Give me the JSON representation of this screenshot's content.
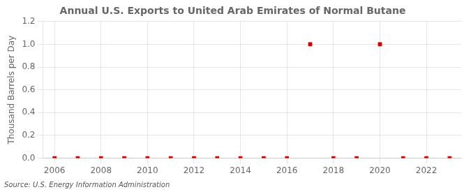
{
  "chart_data": {
    "type": "scatter",
    "title": "Annual U.S. Exports to United Arab Emirates of Normal Butane",
    "ylabel": "Thousand Barrels per Day",
    "source": "Source: U.S. Energy Information Administration",
    "x": [
      2006,
      2007,
      2008,
      2009,
      2010,
      2011,
      2012,
      2013,
      2014,
      2015,
      2016,
      2017,
      2018,
      2019,
      2020,
      2021,
      2022,
      2023
    ],
    "values": [
      0,
      0,
      0,
      0,
      0,
      0,
      0,
      0,
      0,
      0,
      0,
      1.0,
      0,
      0,
      1.0,
      0,
      0,
      0
    ],
    "color": "#cc0000",
    "marker": "square",
    "xlim": [
      2005.5,
      2023.5
    ],
    "xticks": [
      2006,
      2008,
      2010,
      2012,
      2014,
      2016,
      2018,
      2020,
      2022
    ],
    "ylim": [
      0.0,
      1.2
    ],
    "yticks": [
      {
        "value": 0,
        "label": "0.0"
      },
      0.2,
      0.4,
      0.6,
      0.8,
      {
        "value": 1,
        "label": "1.0"
      },
      1.2
    ],
    "grid": true
  }
}
